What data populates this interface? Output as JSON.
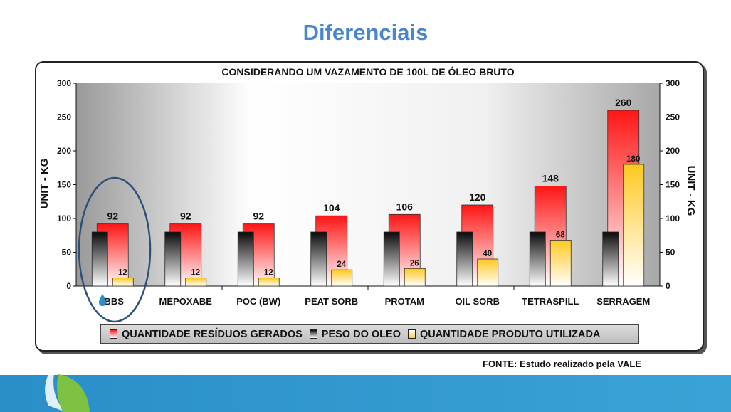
{
  "slide": {
    "title": "Diferenciais",
    "source": "FONTE: Estudo realizado pela VALE"
  },
  "chart_data": {
    "type": "bar",
    "title": "CONSIDERANDO UM VAZAMENTO DE 100L DE ÓLEO BRUTO",
    "ylabel": "UNIT - KG",
    "ylabel_right": "UNIT - KG",
    "ylim": [
      0,
      300
    ],
    "yticks": [
      "0",
      "50",
      "100",
      "150",
      "200",
      "250",
      "300"
    ],
    "categories": [
      "BBS",
      "MEPOXABE",
      "POC (BW)",
      "PEAT SORB",
      "PROTAM",
      "OIL SORB",
      "TETRASPILL",
      "SERRAGEM"
    ],
    "series": [
      {
        "name": "QUANTIDADE RESÍDUOS GERADOS",
        "values": [
          92,
          92,
          92,
          104,
          106,
          120,
          148,
          260
        ],
        "labels": [
          "92",
          "92",
          "92",
          "104",
          "106",
          "120",
          "148",
          "260"
        ]
      },
      {
        "name": "PESO DO OLEO",
        "values": [
          80,
          80,
          80,
          80,
          80,
          80,
          80,
          80
        ]
      },
      {
        "name": "QUANTIDADE PRODUTO UTILIZADA",
        "values": [
          12,
          12,
          12,
          24,
          26,
          40,
          68,
          180
        ],
        "labels": [
          "12",
          "12",
          "12",
          "24",
          "26",
          "40",
          "68",
          "180"
        ]
      }
    ],
    "highlighted_category": "BBS",
    "colors": {
      "residuos": "#ff2020",
      "peso": "#111111",
      "produto": "#ffd030"
    },
    "legend_position": "bottom"
  }
}
